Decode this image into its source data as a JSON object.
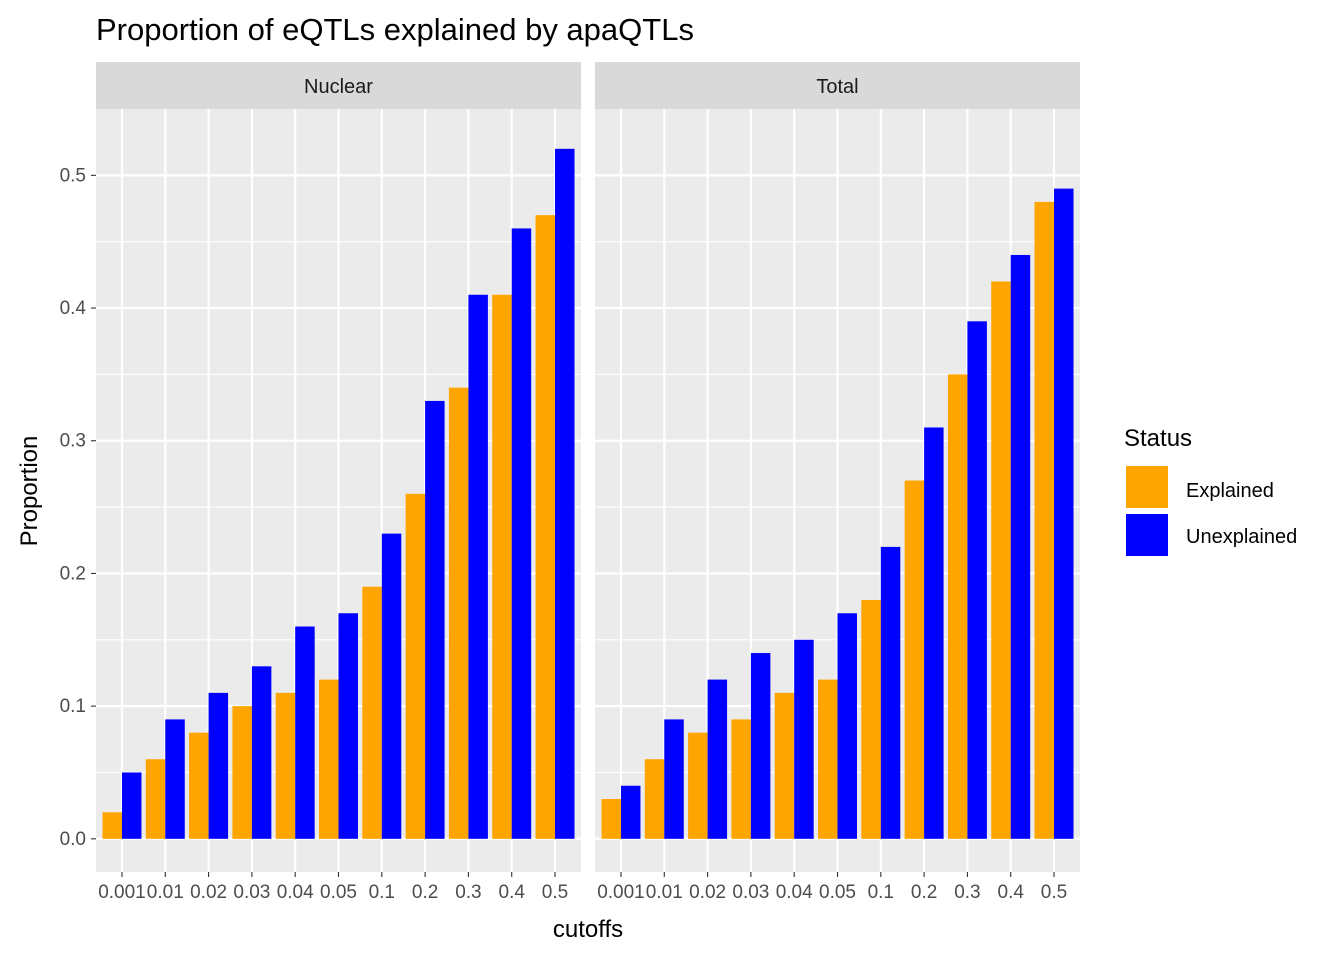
{
  "chart_data": {
    "type": "bar",
    "title": "Proportion of eQTLs explained by apaQTLs",
    "xlabel": "cutoffs",
    "ylabel": "Proportion",
    "ylim": [
      -0.025,
      0.55
    ],
    "yticks": [
      0.0,
      0.1,
      0.2,
      0.3,
      0.4,
      0.5
    ],
    "ytick_labels": [
      "0.0",
      "0.1",
      "0.2",
      "0.3",
      "0.4",
      "0.5"
    ],
    "grid": true,
    "categories": [
      "0.001",
      "0.01",
      "0.02",
      "0.03",
      "0.04",
      "0.05",
      "0.1",
      "0.2",
      "0.3",
      "0.4",
      "0.5"
    ],
    "facets": [
      {
        "label": "Nuclear",
        "series": [
          {
            "name": "Explained",
            "values": [
              0.02,
              0.06,
              0.08,
              0.1,
              0.11,
              0.12,
              0.19,
              0.26,
              0.34,
              0.41,
              0.47
            ]
          },
          {
            "name": "Unexplained",
            "values": [
              0.05,
              0.09,
              0.11,
              0.13,
              0.16,
              0.17,
              0.23,
              0.33,
              0.41,
              0.46,
              0.52
            ]
          }
        ]
      },
      {
        "label": "Total",
        "series": [
          {
            "name": "Explained",
            "values": [
              0.03,
              0.06,
              0.08,
              0.09,
              0.11,
              0.12,
              0.18,
              0.27,
              0.35,
              0.42,
              0.48
            ]
          },
          {
            "name": "Unexplained",
            "values": [
              0.04,
              0.09,
              0.12,
              0.14,
              0.15,
              0.17,
              0.22,
              0.31,
              0.39,
              0.44,
              0.49
            ]
          }
        ]
      }
    ],
    "legend": {
      "title": "Status",
      "position": "right",
      "entries": [
        {
          "name": "Explained",
          "color": "#FFA500"
        },
        {
          "name": "Unexplained",
          "color": "#0000FF"
        }
      ]
    },
    "colors": {
      "panel_background": "#EBEBEB",
      "strip_background": "#D9D9D9",
      "grid": "#FFFFFF"
    }
  }
}
